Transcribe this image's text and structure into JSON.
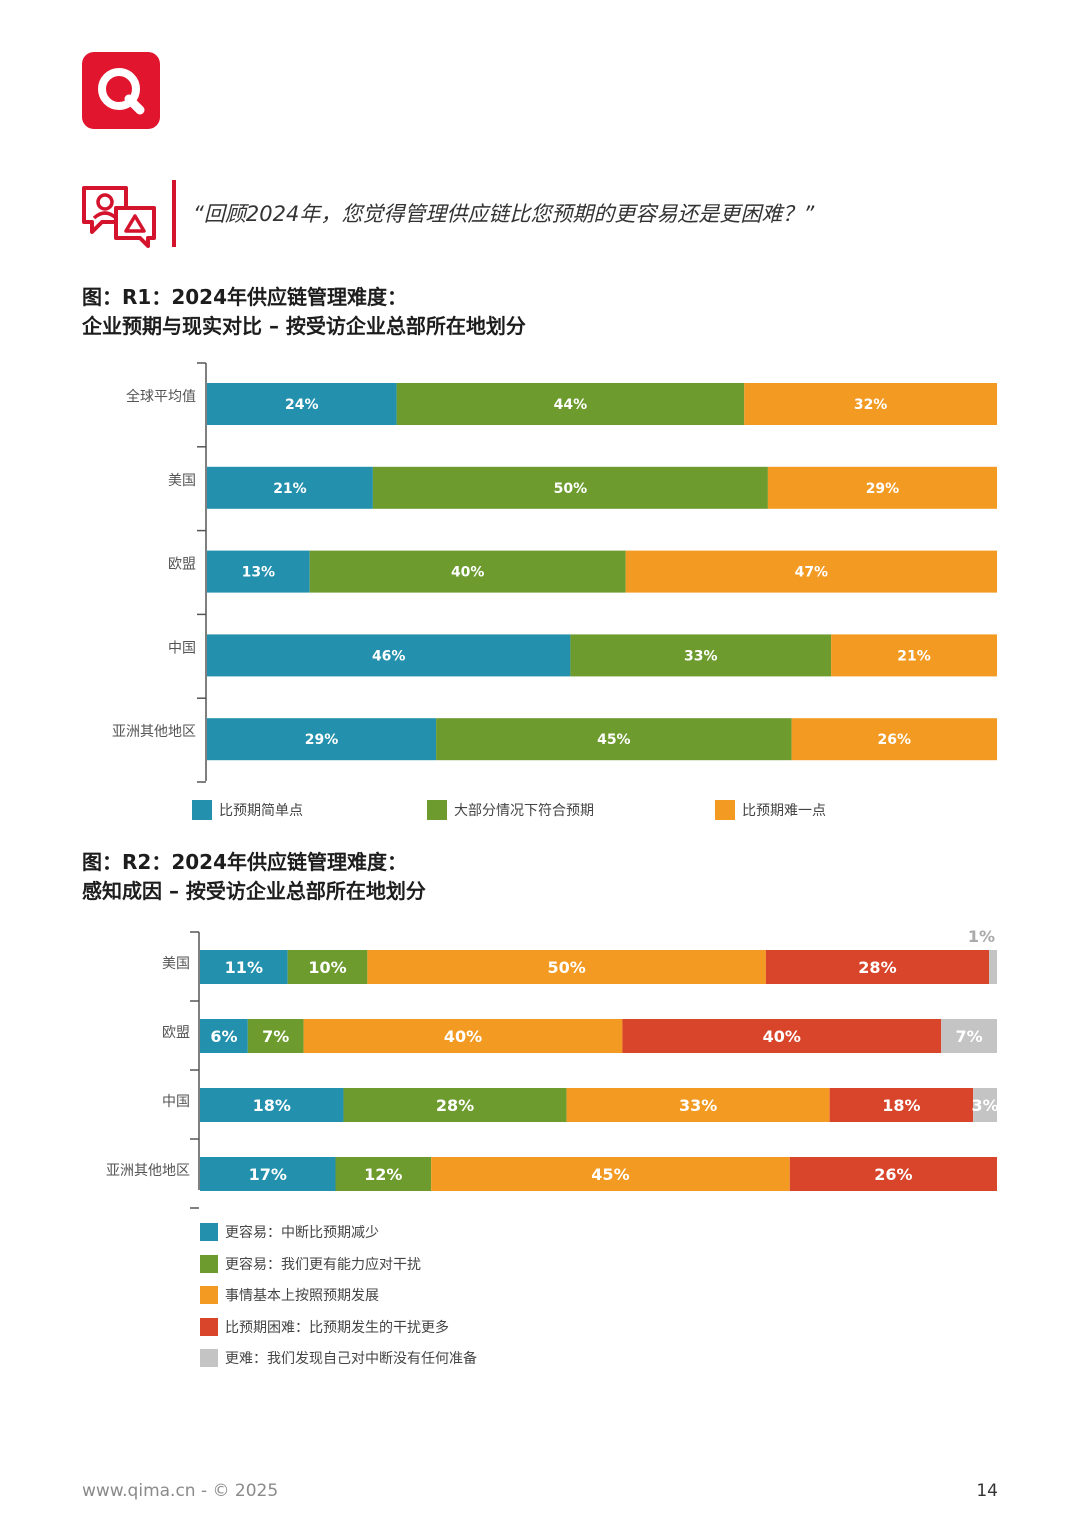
{
  "logo": {
    "icon": "q-logo-icon",
    "color": "#e2152f"
  },
  "question": {
    "icon": "chat-bubbles-icon",
    "text": "“回顾2024年，您觉得管理供应链比您预期的更容易还是更困难？”"
  },
  "colors": {
    "teal": "#2390ad",
    "green": "#6d9b2e",
    "orange": "#f39a22",
    "red": "#d8452b",
    "gray": "#c4c4c4"
  },
  "chart_data": [
    {
      "type": "bar",
      "orientation": "horizontal",
      "stacked": true,
      "title_line1": "图：R1：2024年供应链管理难度：",
      "title_line2": "企业预期与现实对比 – 按受访企业总部所在地划分",
      "categories": [
        "全球平均值",
        "美国",
        "欧盟",
        "中国",
        "亚洲其他地区"
      ],
      "series": [
        {
          "name": "比预期简单点",
          "color": "#2390ad",
          "values": [
            24,
            21,
            13,
            46,
            29
          ]
        },
        {
          "name": "大部分情况下符合预期",
          "color": "#6d9b2e",
          "values": [
            44,
            50,
            40,
            33,
            45
          ]
        },
        {
          "name": "比预期难一点",
          "color": "#f39a22",
          "values": [
            32,
            29,
            47,
            21,
            26
          ]
        }
      ],
      "unit": "%",
      "legend_position": "bottom"
    },
    {
      "type": "bar",
      "orientation": "horizontal",
      "stacked": true,
      "title_line1": "图：R2：2024年供应链管理难度：",
      "title_line2": "感知成因 – 按受访企业总部所在地划分",
      "categories": [
        "美国",
        "欧盟",
        "中国",
        "亚洲其他地区"
      ],
      "series": [
        {
          "name": "更容易：中断比预期减少",
          "color": "#2390ad",
          "values": [
            11,
            6,
            18,
            17
          ]
        },
        {
          "name": "更容易：我们更有能力应对干扰",
          "color": "#6d9b2e",
          "values": [
            10,
            7,
            28,
            12
          ]
        },
        {
          "name": "事情基本上按照预期发展",
          "color": "#f39a22",
          "values": [
            50,
            40,
            33,
            45
          ]
        },
        {
          "name": "比预期困难：比预期发生的干扰更多",
          "color": "#d8452b",
          "values": [
            28,
            40,
            18,
            26
          ]
        },
        {
          "name": "更难：我们发现自己对中断没有任何准备",
          "color": "#c4c4c4",
          "values": [
            1,
            7,
            3,
            0
          ]
        }
      ],
      "unit": "%",
      "legend_position": "bottom"
    }
  ],
  "footer": {
    "text": "www.qima.cn - © 2025",
    "page": "14"
  }
}
